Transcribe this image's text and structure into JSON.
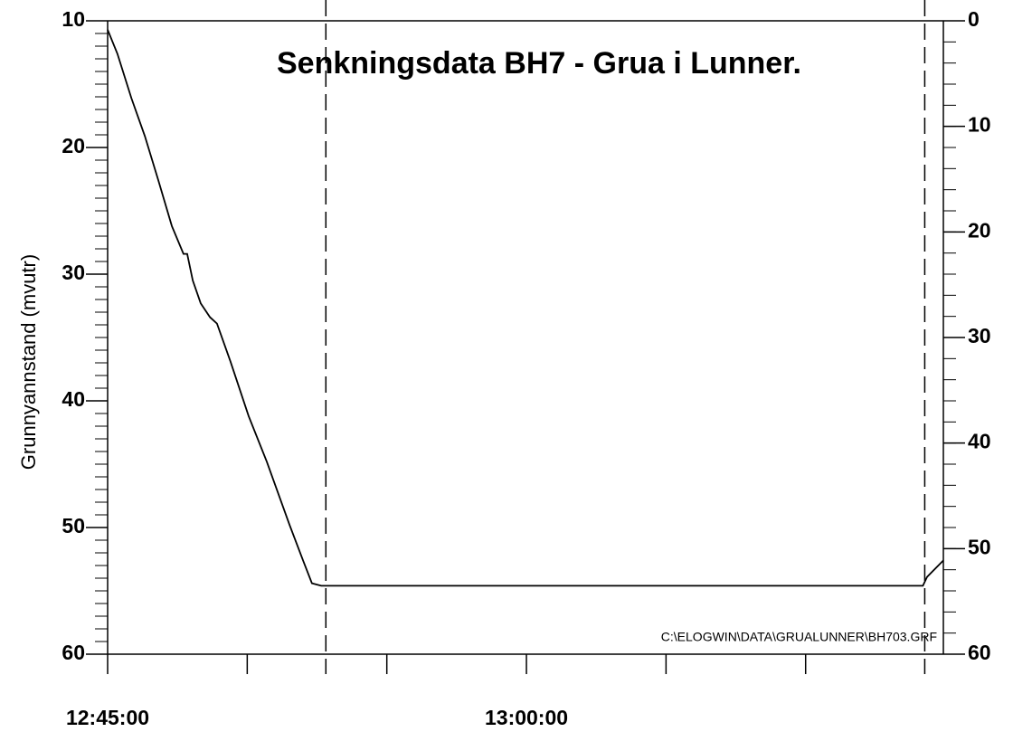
{
  "chart_data": {
    "type": "line",
    "title": "Senkningsdata BH7 - Grua i Lunner.",
    "y_label": "Grunnyannstand (mvutr)",
    "annotation": "C:\\ELOGWIN\\DATA\\GRUALUNNER\\BH703.GRF",
    "x": [
      "12:45:00",
      "12:45:21",
      "12:45:51",
      "12:46:20",
      "12:46:49",
      "12:47:18",
      "12:47:43",
      "12:47:51",
      "12:48:03",
      "12:48:20",
      "12:48:40",
      "12:48:55",
      "12:49:24",
      "12:50:03",
      "12:50:42",
      "12:51:31",
      "12:52:00",
      "12:52:19",
      "12:52:39",
      "12:53:08",
      "13:14:12",
      "13:14:21",
      "13:14:56"
    ],
    "series": [
      {
        "color": "#000000",
        "values": [
          10.7,
          12.6,
          16.1,
          19.1,
          22.6,
          26.2,
          28.4,
          28.4,
          30.5,
          32.3,
          33.4,
          33.9,
          36.9,
          41.2,
          44.8,
          49.8,
          52.6,
          54.4,
          54.6,
          54.6,
          54.6,
          53.9,
          52.6
        ]
      }
    ],
    "xlim": [
      "12:45:00",
      "13:14:56"
    ],
    "xticks": [
      "12:45:00",
      {
        "value": "12:50:00",
        "label": null
      },
      {
        "value": "12:55:00",
        "label": null
      },
      "13:00:00",
      {
        "value": "13:05:00",
        "label": null
      },
      {
        "value": "13:10:00",
        "label": null
      }
    ],
    "ylim": [
      10,
      60
    ],
    "yticks": [
      10,
      20,
      30,
      40,
      50,
      60
    ],
    "y_inverted": true,
    "y_minor_step": 1,
    "y2lim": [
      0,
      60
    ],
    "y2ticks": [
      0,
      10,
      20,
      30,
      40,
      50,
      60
    ],
    "y2_minor_step": 2,
    "vlines": [
      "12:52:49",
      "13:14:16"
    ]
  }
}
